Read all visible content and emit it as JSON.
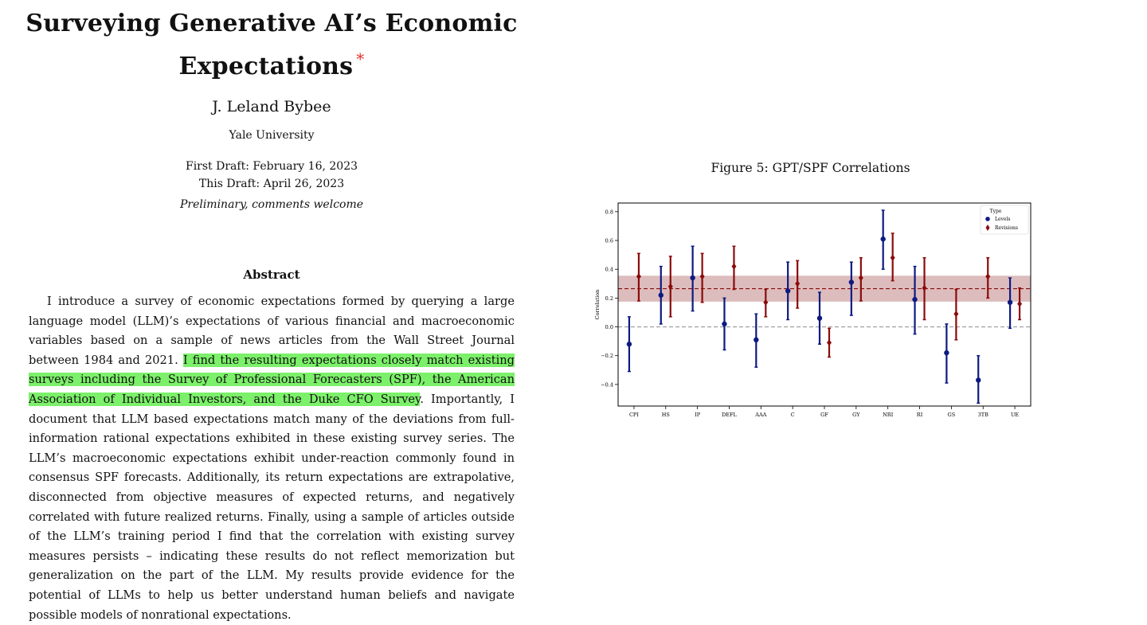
{
  "paper": {
    "title_line1": "Surveying Generative AI’s Economic",
    "title_line2": "Expectations",
    "title_mark": "*",
    "author": "J. Leland Bybee",
    "affiliation": "Yale University",
    "first_draft": "First Draft: February 16, 2023",
    "this_draft": "This Draft: April 26, 2023",
    "status_note": "Preliminary, comments welcome"
  },
  "abstract": {
    "heading": "Abstract",
    "part1": "I introduce a survey of economic expectations formed by querying a large language model (LLM)’s expectations of various financial and macroeconomic variables based on a sample of news articles from the Wall Street Journal between 1984 and 2021. ",
    "highlight": "I find the resulting expectations closely match existing surveys including the Survey of Professional Forecasters (SPF), the American Association of Individual Investors, and the Duke CFO Survey",
    "part2": ". Importantly, I document that LLM based expectations match many of the deviations from full-information rational expectations exhibited in these existing survey series. The LLM’s macroeconomic expectations exhibit under-reaction commonly found in consensus SPF forecasts. Additionally, its return expectations are extrapolative, disconnected from objective measures of expected returns, and negatively correlated with future realized returns. Finally, using a sample of articles outside of the LLM’s training period I find that the correlation with existing survey measures persists – indicating these results do not reflect memorization but generalization on the part of the LLM. My results provide evidence for the potential of LLMs to help us better understand human beliefs and navigate possible models of nonrational expectations.",
    "highlight_color": "#7cf06a"
  },
  "figure": {
    "caption": "Figure 5: GPT/SPF Correlations"
  },
  "chart_data": {
    "type": "scatter",
    "ylabel": "Correlation",
    "xlabel": "",
    "categories": [
      "CPI",
      "HS",
      "IP",
      "DEFL",
      "AAA",
      "C",
      "GF",
      "GY",
      "NRI",
      "RI",
      "GS",
      "3TB",
      "UE"
    ],
    "ylim": [
      -0.55,
      0.86
    ],
    "yticks": [
      -0.4,
      -0.2,
      0.0,
      0.2,
      0.4,
      0.6,
      0.8
    ],
    "legend": {
      "title": "Type",
      "position": "top-right"
    },
    "series": [
      {
        "name": "Levels",
        "marker": "circle",
        "color": "#0d1a80",
        "values": [
          -0.12,
          0.22,
          0.34,
          0.02,
          -0.09,
          0.25,
          0.06,
          0.31,
          0.61,
          0.19,
          -0.18,
          -0.37,
          0.17
        ],
        "lower": [
          -0.31,
          0.02,
          0.11,
          -0.16,
          -0.28,
          0.05,
          -0.12,
          0.08,
          0.4,
          -0.05,
          -0.39,
          -0.53,
          -0.01
        ],
        "upper": [
          0.07,
          0.42,
          0.56,
          0.2,
          0.09,
          0.45,
          0.24,
          0.45,
          0.81,
          0.42,
          0.02,
          -0.2,
          0.34
        ]
      },
      {
        "name": "Revisions",
        "marker": "diamond",
        "color": "#8b0b0b",
        "values": [
          0.35,
          0.28,
          0.35,
          0.42,
          0.17,
          0.3,
          -0.11,
          0.34,
          0.48,
          0.27,
          0.09,
          0.35,
          0.16
        ],
        "lower": [
          0.18,
          0.07,
          0.17,
          0.26,
          0.07,
          0.13,
          -0.21,
          0.18,
          0.32,
          0.05,
          -0.09,
          0.2,
          0.05
        ],
        "upper": [
          0.51,
          0.49,
          0.51,
          0.56,
          0.26,
          0.46,
          -0.01,
          0.48,
          0.65,
          0.48,
          0.26,
          0.48,
          0.27
        ]
      }
    ],
    "reference_lines": [
      {
        "y": 0.0,
        "style": "dashed",
        "color": "#9a9a9a"
      },
      {
        "y": 0.265,
        "style": "dashed",
        "color": "#8b0b0b"
      }
    ],
    "band": {
      "y0": 0.175,
      "y1": 0.355,
      "color": "#dcbcbd"
    }
  }
}
